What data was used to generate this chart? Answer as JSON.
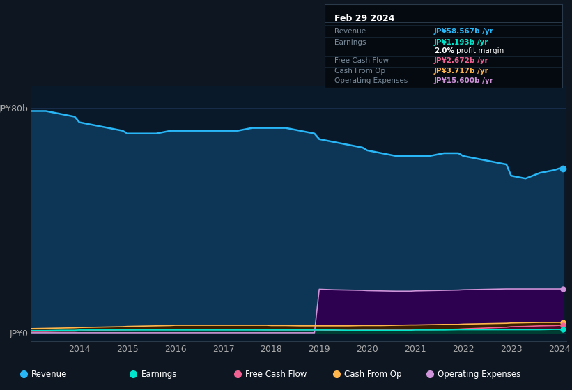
{
  "bg_color": "#0e1621",
  "plot_bg_color": "#0a1929",
  "grid_color": "#1a3050",
  "years": [
    2013.0,
    2013.3,
    2013.6,
    2013.9,
    2014.0,
    2014.3,
    2014.6,
    2014.9,
    2015.0,
    2015.3,
    2015.6,
    2015.9,
    2016.0,
    2016.3,
    2016.6,
    2016.9,
    2017.0,
    2017.3,
    2017.6,
    2017.9,
    2018.0,
    2018.3,
    2018.6,
    2018.9,
    2019.0,
    2019.3,
    2019.6,
    2019.9,
    2020.0,
    2020.3,
    2020.6,
    2020.9,
    2021.0,
    2021.3,
    2021.6,
    2021.9,
    2022.0,
    2022.3,
    2022.6,
    2022.9,
    2023.0,
    2023.3,
    2023.6,
    2023.9,
    2024.0,
    2024.08
  ],
  "revenue": [
    79,
    79,
    78,
    77,
    75,
    74,
    73,
    72,
    71,
    71,
    71,
    72,
    72,
    72,
    72,
    72,
    72,
    72,
    73,
    73,
    73,
    73,
    72,
    71,
    69,
    68,
    67,
    66,
    65,
    64,
    63,
    63,
    63,
    63,
    64,
    64,
    63,
    62,
    61,
    60,
    56,
    55,
    57,
    58,
    58.567,
    58.567
  ],
  "earnings": [
    0.8,
    0.8,
    0.9,
    0.9,
    1.0,
    1.0,
    1.0,
    1.0,
    1.0,
    1.0,
    1.0,
    1.0,
    1.0,
    1.0,
    1.0,
    1.0,
    1.0,
    1.0,
    1.0,
    1.0,
    1.0,
    1.0,
    1.0,
    1.0,
    1.0,
    1.0,
    0.9,
    0.9,
    0.9,
    0.9,
    0.9,
    0.9,
    1.0,
    1.0,
    1.0,
    1.1,
    1.1,
    1.1,
    1.1,
    1.1,
    1.1,
    1.1,
    1.1,
    1.2,
    1.193,
    1.193
  ],
  "free_cash_flow": [
    0.5,
    0.5,
    0.6,
    0.6,
    0.7,
    0.8,
    0.9,
    1.0,
    1.0,
    1.1,
    1.1,
    1.1,
    1.1,
    1.1,
    1.1,
    1.1,
    1.1,
    1.1,
    1.1,
    1.0,
    1.0,
    1.0,
    1.0,
    1.0,
    1.0,
    0.9,
    0.9,
    1.0,
    1.0,
    1.0,
    1.0,
    1.0,
    1.1,
    1.1,
    1.2,
    1.3,
    1.4,
    1.6,
    1.8,
    2.0,
    2.2,
    2.3,
    2.5,
    2.6,
    2.672,
    2.672
  ],
  "cash_from_op": [
    1.5,
    1.6,
    1.7,
    1.8,
    1.9,
    2.0,
    2.1,
    2.2,
    2.3,
    2.4,
    2.5,
    2.6,
    2.7,
    2.7,
    2.7,
    2.7,
    2.7,
    2.7,
    2.7,
    2.7,
    2.6,
    2.6,
    2.5,
    2.5,
    2.5,
    2.5,
    2.5,
    2.6,
    2.6,
    2.6,
    2.7,
    2.8,
    2.8,
    2.9,
    3.0,
    3.0,
    3.1,
    3.2,
    3.3,
    3.4,
    3.5,
    3.6,
    3.7,
    3.7,
    3.717,
    3.717
  ],
  "operating_expenses": [
    0,
    0,
    0,
    0,
    0,
    0,
    0,
    0,
    0,
    0,
    0,
    0,
    0,
    0,
    0,
    0,
    0,
    0,
    0,
    0,
    0,
    0,
    0,
    0,
    15.5,
    15.3,
    15.2,
    15.1,
    15.0,
    14.9,
    14.8,
    14.8,
    14.9,
    15.0,
    15.1,
    15.2,
    15.3,
    15.4,
    15.5,
    15.6,
    15.6,
    15.6,
    15.6,
    15.6,
    15.6,
    15.6
  ],
  "revenue_color": "#29b6f6",
  "revenue_fill": "#0d3555",
  "earnings_color": "#00e5cc",
  "earnings_fill": "#003d33",
  "free_cash_flow_color": "#f06292",
  "free_cash_flow_fill": "#4a0a2a",
  "cash_from_op_color": "#ffb74d",
  "cash_from_op_fill": "#3a2000",
  "operating_expenses_color": "#ce93d8",
  "operating_expenses_fill": "#2d0050",
  "ylim": [
    -3,
    88
  ],
  "ytick_0_label": "JP¥0",
  "ytick_80_label": "JP¥80b",
  "xtick_labels": [
    "2014",
    "2015",
    "2016",
    "2017",
    "2018",
    "2019",
    "2020",
    "2021",
    "2022",
    "2023",
    "2024"
  ],
  "xtick_positions": [
    2014,
    2015,
    2016,
    2017,
    2018,
    2019,
    2020,
    2021,
    2022,
    2023,
    2024
  ],
  "info_box": {
    "title": "Feb 29 2024",
    "rows": [
      {
        "label": "Revenue",
        "value": "JP¥58.567b /yr",
        "value_color": "#29b6f6"
      },
      {
        "label": "Earnings",
        "value": "JP¥1.193b /yr",
        "value_color": "#00e5cc"
      },
      {
        "label": "",
        "value": "2.0% profit margin",
        "value_color": "#ffffff"
      },
      {
        "label": "Free Cash Flow",
        "value": "JP¥2.672b /yr",
        "value_color": "#f06292"
      },
      {
        "label": "Cash From Op",
        "value": "JP¥3.717b /yr",
        "value_color": "#ffb74d"
      },
      {
        "label": "Operating Expenses",
        "value": "JP¥15.600b /yr",
        "value_color": "#ce93d8"
      }
    ]
  },
  "legend": [
    {
      "label": "Revenue",
      "color": "#29b6f6"
    },
    {
      "label": "Earnings",
      "color": "#00e5cc"
    },
    {
      "label": "Free Cash Flow",
      "color": "#f06292"
    },
    {
      "label": "Cash From Op",
      "color": "#ffb74d"
    },
    {
      "label": "Operating Expenses",
      "color": "#ce93d8"
    }
  ]
}
